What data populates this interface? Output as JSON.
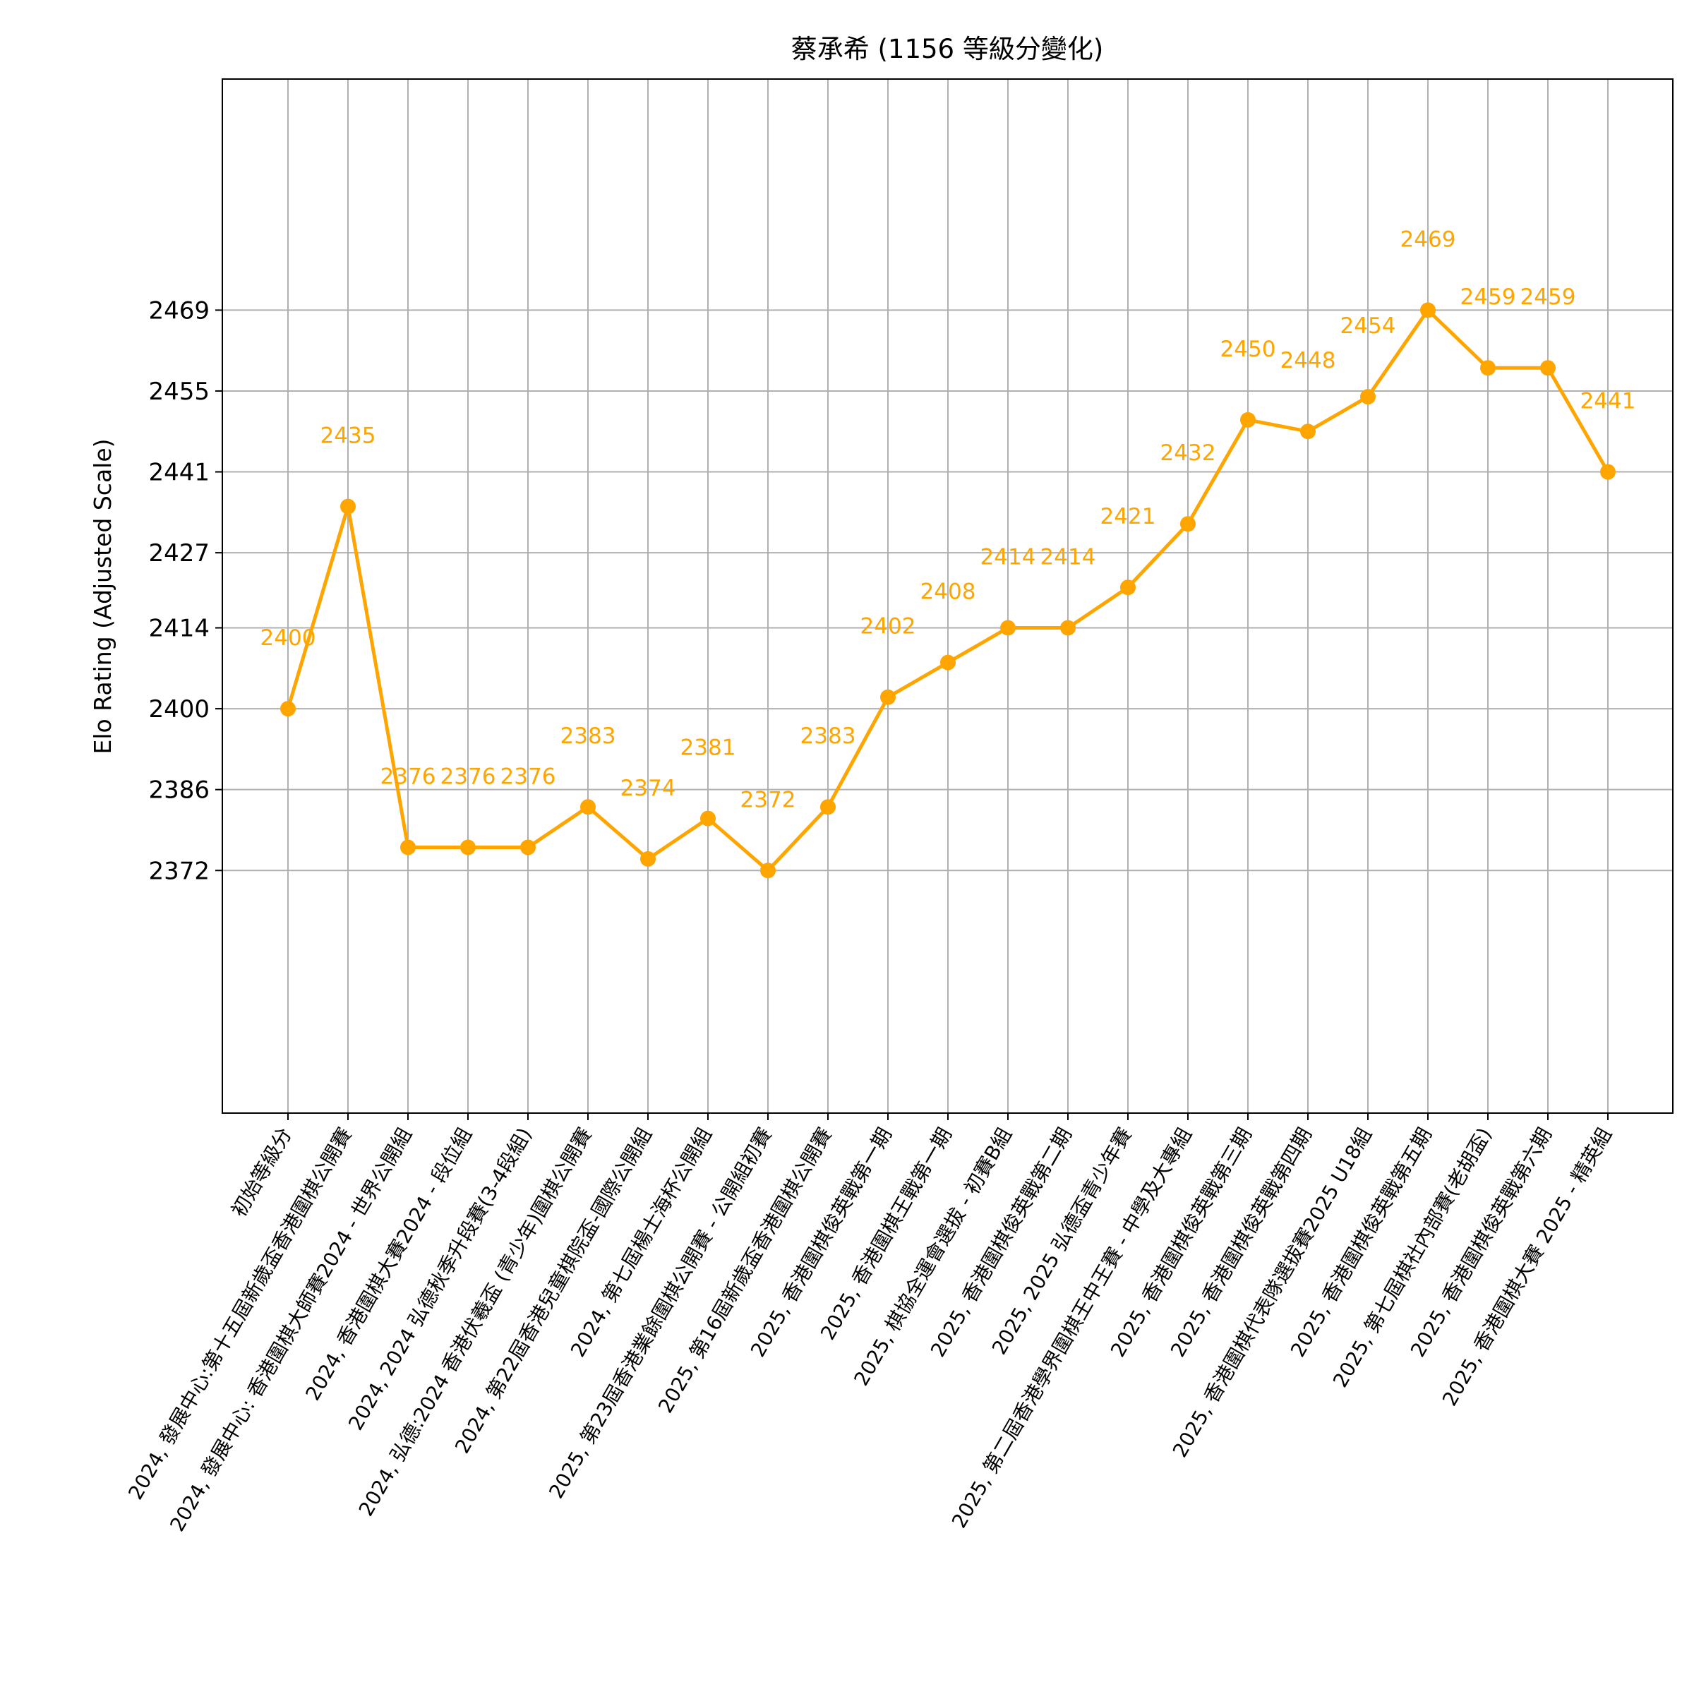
{
  "chart_data": {
    "type": "line",
    "title": "蔡承希 (1156 等級分變化)",
    "ylabel": "Elo Rating (Adjusted Scale)",
    "xlabel": "",
    "color": "#ffa500",
    "grid": true,
    "legend": "none",
    "ylim": [
      2330,
      2509
    ],
    "yticks": [
      2372,
      2386,
      2400,
      2414,
      2427,
      2441,
      2455,
      2469
    ],
    "categories": [
      "初始等級分",
      "2024, 發展中心:第十五屆新歲盃香港圍棋公開賽",
      "2024, 發展中心: 香港圍棋大師賽2024 - 世界公開組",
      "2024, 香港圍棋大賽2024 - 段位組",
      "2024, 2024 弘德秋季升段賽(3-4段組)",
      "2024, 弘德:2024 香港伏羲盃 (青少年)圍棋公開賽",
      "2024, 第22屆香港兒童棋院盃-國際公開組",
      "2024, 第七屆楊士海杯公開組",
      "2025, 第23屆香港業餘圍棋公開賽 - 公開組初賽",
      "2025, 第16屆新歲盃香港圍棋公開賽",
      "2025, 香港圍棋俊英戰第一期",
      "2025, 香港圍棋王戰第一期",
      "2025, 棋協全運會選拔 - 初賽B組",
      "2025, 香港圍棋俊英戰第二期",
      "2025, 2025 弘德盃青少年賽",
      "2025, 第二屆香港學界圍棋王中王賽 - 中學及大專組",
      "2025, 香港圍棋俊英戰第三期",
      "2025, 香港圍棋俊英戰第四期",
      "2025, 香港圍棋代表隊選拔賽2025 U18組",
      "2025, 香港圍棋俊英戰第五期",
      "2025, 第七屆棋社內部賽(老胡盃)",
      "2025, 香港圍棋俊英戰第六期",
      "2025, 香港圍棋大賽 2025 - 精英組"
    ],
    "values": [
      2400,
      2435,
      2376,
      2376,
      2376,
      2383,
      2374,
      2381,
      2372,
      2383,
      2402,
      2408,
      2414,
      2414,
      2421,
      2432,
      2450,
      2448,
      2454,
      2469,
      2459,
      2459,
      2441
    ],
    "data_labels": [
      "2400",
      "2435",
      "2376",
      "2376",
      "2376",
      "2383",
      "2374",
      "2381",
      "2372",
      "2383",
      "2402",
      "2408",
      "2414",
      "2414",
      "2421",
      "2432",
      "2450",
      "2448",
      "2454",
      "2469",
      "2459",
      "2459",
      "2441"
    ]
  }
}
